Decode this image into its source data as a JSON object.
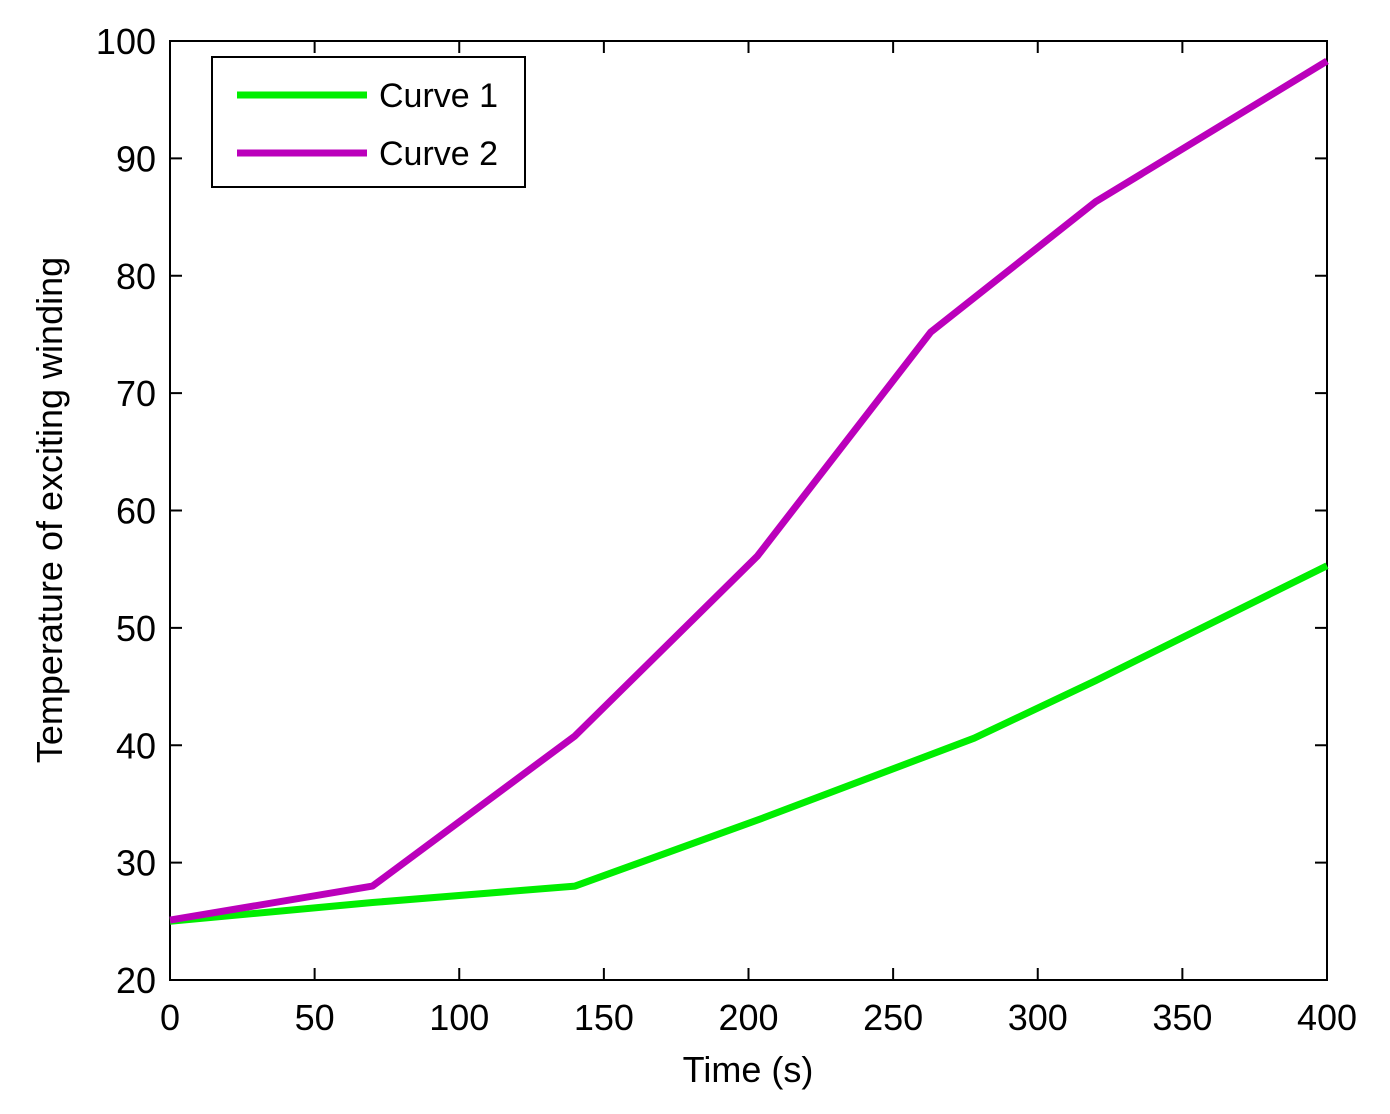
{
  "chart_data": {
    "type": "line",
    "title": "",
    "xlabel": "Time (s)",
    "ylabel": "Temperature of exciting winding",
    "xlim": [
      0,
      400
    ],
    "ylim": [
      20,
      100
    ],
    "x_ticks": [
      0,
      50,
      100,
      150,
      200,
      250,
      300,
      350,
      400
    ],
    "y_ticks": [
      20,
      30,
      40,
      50,
      60,
      70,
      80,
      90,
      100
    ],
    "grid": false,
    "legend_position": "top-left",
    "series": [
      {
        "name": "Curve 1",
        "color": "#00ee00",
        "x": [
          0,
          70,
          140,
          205,
          278,
          320,
          400
        ],
        "y": [
          25.0,
          26.6,
          28.0,
          33.8,
          40.6,
          45.5,
          55.3
        ]
      },
      {
        "name": "Curve 2",
        "color": "#bb00bb",
        "x": [
          0,
          70,
          140,
          203,
          263,
          320,
          400
        ],
        "y": [
          25.1,
          28.0,
          40.8,
          56.1,
          75.2,
          86.3,
          98.3
        ]
      }
    ]
  }
}
